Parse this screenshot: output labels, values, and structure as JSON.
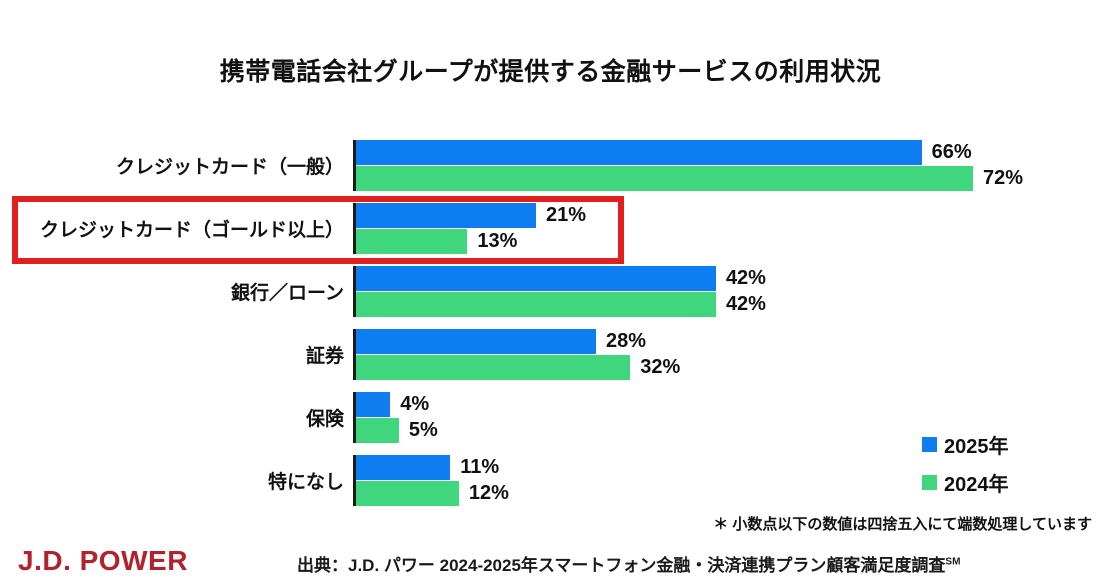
{
  "page": {
    "title": "携帯電話会社グループが提供する金融サービスの利用状況",
    "footnote": "＊ 小数点以下の数値は四捨五入にて端数処理しています",
    "source_text": "出典：J.D. パワー 2024-2025年スマートフォン金融・決済連携プラン顧客満足度調査",
    "source_superscript": "SM",
    "logo_text": "J.D. POWER"
  },
  "colors": {
    "series_2025": "#0e7df0",
    "series_2024": "#3fd67e",
    "highlight_box": "#e01f1f",
    "logo_red": "#b0232e",
    "text": "#111111"
  },
  "legend": [
    {
      "label": "2025年",
      "color": "#0e7df0"
    },
    {
      "label": "2024年",
      "color": "#3fd67e"
    }
  ],
  "chart_data": {
    "type": "bar",
    "orientation": "horizontal",
    "title": "携帯電話会社グループが提供する金融サービスの利用状況",
    "categories": [
      "クレジットカード（一般）",
      "クレジットカード（ゴールド以上）",
      "銀行／ローン",
      "証券",
      "保険",
      "特になし"
    ],
    "series": [
      {
        "name": "2025年",
        "values": [
          66,
          21,
          42,
          28,
          4,
          11
        ]
      },
      {
        "name": "2024年",
        "values": [
          72,
          13,
          42,
          32,
          5,
          12
        ]
      }
    ],
    "value_format": "percent",
    "xlim": [
      0,
      100
    ],
    "grid": false,
    "legend_position": "right-middle",
    "highlighted_category_index": 1,
    "highlight_note": "red box around クレジットカード（ゴールド以上） row"
  }
}
